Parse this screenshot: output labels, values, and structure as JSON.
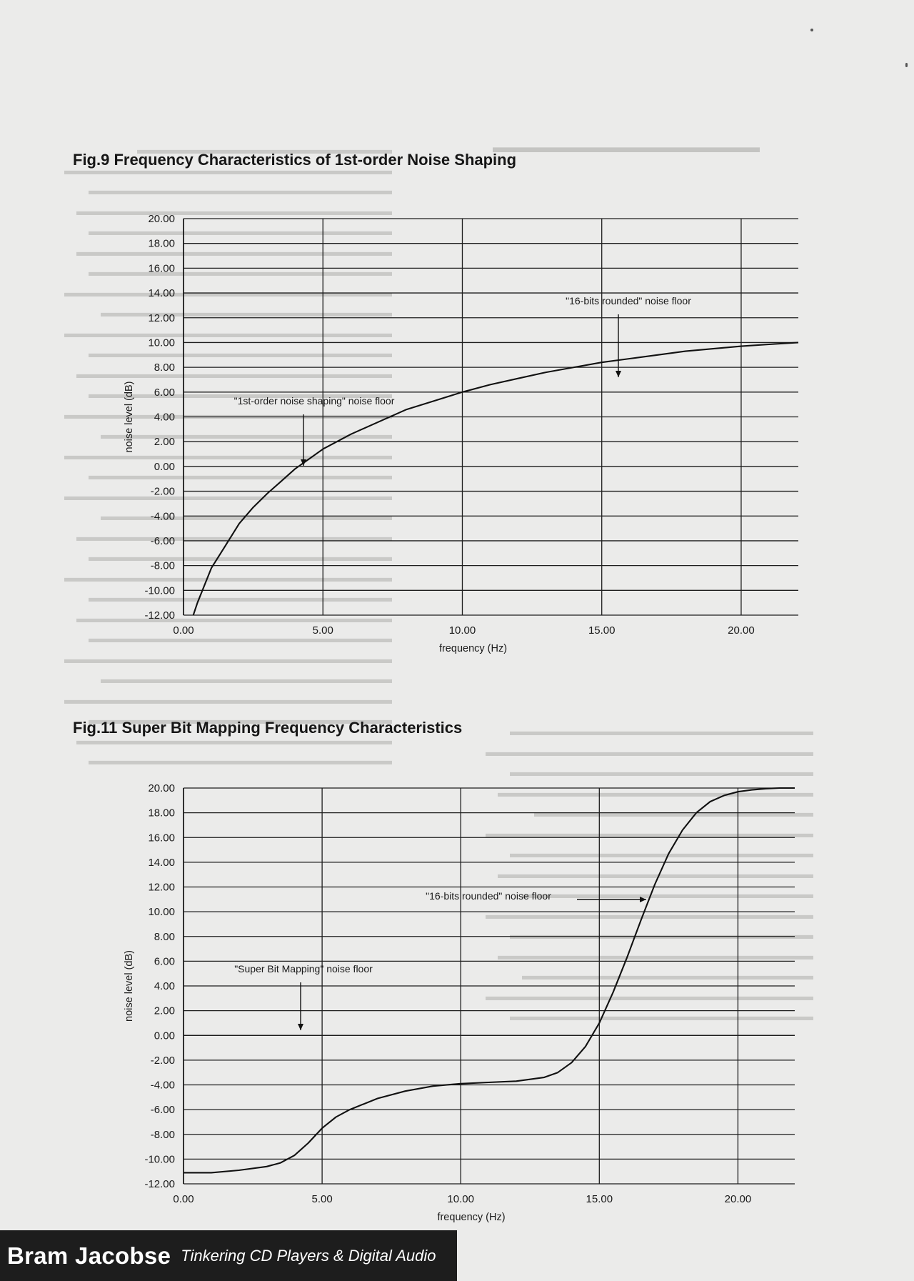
{
  "figures": [
    {
      "id": "fig9",
      "title": "Fig.9  Frequency Characteristics of 1st-order Noise Shaping",
      "chart_data": {
        "type": "line",
        "xlabel": "frequency (Hz)",
        "ylabel": "noise level (dB)",
        "xlim": [
          0,
          22.05
        ],
        "ylim": [
          -12,
          20
        ],
        "x_ticks": [
          "0.00",
          "5.00",
          "10.00",
          "15.00",
          "20.00"
        ],
        "y_ticks": [
          "-12.00",
          "-10.00",
          "-8.00",
          "-6.00",
          "-4.00",
          "-2.00",
          "0.00",
          "2.00",
          "4.00",
          "6.00",
          "8.00",
          "10.00",
          "12.00",
          "14.00",
          "16.00",
          "18.00",
          "20.00"
        ],
        "grid": true,
        "series": [
          {
            "name": "\"1st-order noise shaping\" noise floor",
            "x": [
              0.35,
              0.5,
              1,
              1.5,
              2,
              2.5,
              3,
              3.5,
              4,
              4.5,
              5,
              6,
              7,
              8,
              9,
              10,
              11,
              12,
              13,
              14,
              15,
              16,
              17,
              18,
              19,
              20,
              21,
              22.05
            ],
            "y": [
              -12,
              -11.0,
              -8.2,
              -6.4,
              -4.6,
              -3.3,
              -2.2,
              -1.2,
              -0.2,
              0.6,
              1.4,
              2.6,
              3.6,
              4.6,
              5.3,
              6.0,
              6.6,
              7.1,
              7.6,
              8.0,
              8.4,
              8.7,
              9.0,
              9.3,
              9.5,
              9.7,
              9.85,
              10.0
            ]
          },
          {
            "name": "\"16-bits rounded\" noise floor",
            "x": [
              0,
              22.05
            ],
            "y": [
              0,
              0
            ]
          }
        ],
        "annotations": [
          {
            "text": "\"16-bits rounded\" noise floor",
            "x": 15.8,
            "y": 13.2
          },
          {
            "text": "\"1st-order noise shaping\" noise floor",
            "x": 4.2,
            "y": 4.8
          }
        ]
      }
    },
    {
      "id": "fig11",
      "title": "Fig.11 Super Bit Mapping Frequency Characteristics",
      "chart_data": {
        "type": "line",
        "xlabel": "frequency (Hz)",
        "ylabel": "noise level (dB)",
        "xlim": [
          0,
          22.05
        ],
        "ylim": [
          -12,
          20
        ],
        "x_ticks": [
          "0.00",
          "5.00",
          "10.00",
          "15.00",
          "20.00"
        ],
        "y_ticks": [
          "-12.00",
          "-10.00",
          "-8.00",
          "-6.00",
          "-4.00",
          "-2.00",
          "0.00",
          "2.00",
          "4.00",
          "6.00",
          "8.00",
          "10.00",
          "12.00",
          "14.00",
          "16.00",
          "18.00",
          "20.00"
        ],
        "grid": true,
        "series": [
          {
            "name": "\"Super Bit Mapping\" noise floor",
            "x": [
              0,
              1,
              2,
              3,
              3.5,
              4,
              4.5,
              5,
              5.5,
              6,
              7,
              8,
              9,
              10,
              11,
              12,
              13,
              13.5,
              14,
              14.5,
              15,
              15.5,
              16,
              16.5,
              17,
              17.5,
              18,
              18.5,
              19,
              19.5,
              20,
              20.5,
              21,
              21.5,
              22.05
            ],
            "y": [
              -11.1,
              -11.1,
              -10.9,
              -10.6,
              -10.3,
              -9.7,
              -8.7,
              -7.5,
              -6.6,
              -6.0,
              -5.1,
              -4.5,
              -4.1,
              -3.9,
              -3.8,
              -3.7,
              -3.4,
              -3.0,
              -2.2,
              -0.9,
              1.0,
              3.5,
              6.3,
              9.3,
              12.2,
              14.7,
              16.6,
              18.0,
              18.9,
              19.4,
              19.7,
              19.85,
              19.95,
              20.0,
              20.0
            ]
          },
          {
            "name": "\"16-bits rounded\" noise floor",
            "x": [
              0,
              22.05
            ],
            "y": [
              0,
              0
            ]
          }
        ],
        "annotations": [
          {
            "text": "\"16-bits rounded\" noise floor",
            "x": 8.9,
            "y": 11.0
          },
          {
            "text": "\"Super Bit Mapping\" noise floor",
            "x": 4.4,
            "y": 5.2
          }
        ]
      }
    }
  ],
  "footer": {
    "author": "Bram Jacobse",
    "book": "Tinkering CD Players & Digital Audio"
  }
}
